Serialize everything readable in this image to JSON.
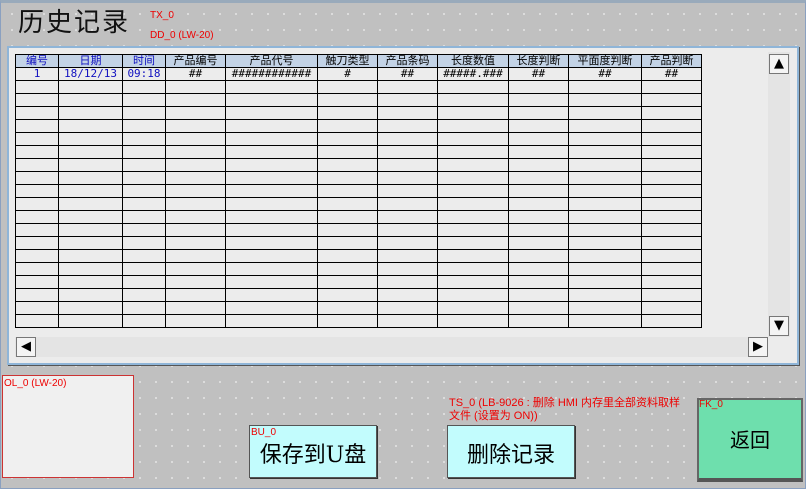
{
  "title": "历史记录",
  "title_tag": "TX_0",
  "table_tag": "DD_0 (LW-20)",
  "columns": [
    "编号",
    "日期",
    "时间",
    "产品编号",
    "产品代号",
    "触刀类型",
    "产品条码",
    "长度数值",
    "长度判断",
    "平面度判断",
    "产品判断"
  ],
  "first_row": [
    "1",
    "18/12/13",
    "09:18",
    "##",
    "############",
    "#",
    "##",
    "#####.###",
    "##",
    "##",
    "##"
  ],
  "ol_tag": "OL_0 (LW-20)",
  "save_button": {
    "tag": "BU_0",
    "label": "保存到U盘"
  },
  "delete_button": {
    "tag": "TS_0 (LB-9026 : 删除 HMI 内存里全部资料取样文件 (设置为 ON))",
    "label": "删除记录"
  },
  "back_button": {
    "tag": "FK_0",
    "label": "返回"
  },
  "icons": {
    "scroll_up": "triangle-up",
    "scroll_down": "triangle-down",
    "scroll_left": "triangle-left",
    "scroll_right": "triangle-right"
  },
  "colors": {
    "header_bg": "#c3d3e6",
    "button_bg": "#c2fcfd",
    "back_bg": "#6edfad",
    "tag_color": "#ee0000"
  }
}
